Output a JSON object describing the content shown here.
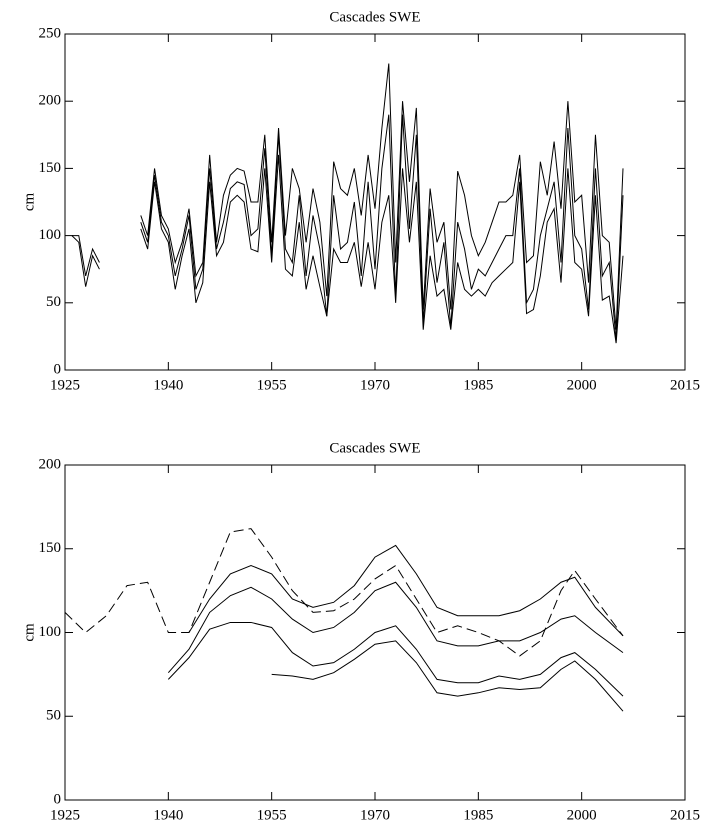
{
  "chart_data": [
    {
      "type": "line",
      "title": "Cascades SWE",
      "ylabel": "cm",
      "x": [
        1926,
        1927,
        1928,
        1929,
        1930,
        1931,
        1932,
        1933,
        1934,
        1935,
        1936,
        1937,
        1938,
        1939,
        1940,
        1941,
        1942,
        1943,
        1944,
        1945,
        1946,
        1947,
        1948,
        1949,
        1950,
        1951,
        1952,
        1953,
        1954,
        1955,
        1956,
        1957,
        1958,
        1959,
        1960,
        1961,
        1962,
        1963,
        1964,
        1965,
        1966,
        1967,
        1968,
        1969,
        1970,
        1971,
        1972,
        1973,
        1974,
        1975,
        1976,
        1977,
        1978,
        1979,
        1980,
        1981,
        1982,
        1983,
        1984,
        1985,
        1986,
        1987,
        1988,
        1989,
        1990,
        1991,
        1992,
        1993,
        1994,
        1995,
        1996,
        1997,
        1998,
        1999,
        2000,
        2001,
        2002,
        2003,
        2004,
        2005,
        2006
      ],
      "series": [
        {
          "color": "#000000",
          "values": [
            100,
            95,
            62,
            85,
            75,
            null,
            null,
            null,
            null,
            null,
            110,
            95,
            145,
            110,
            100,
            70,
            90,
            115,
            60,
            75,
            150,
            90,
            110,
            135,
            140,
            138,
            100,
            105,
            165,
            85,
            175,
            90,
            80,
            130,
            70,
            115,
            90,
            40,
            130,
            90,
            95,
            125,
            70,
            140,
            75,
            150,
            190,
            55,
            190,
            105,
            175,
            35,
            120,
            65,
            95,
            32,
            110,
            90,
            60,
            75,
            70,
            80,
            90,
            100,
            100,
            150,
            50,
            60,
            100,
            120,
            140,
            80,
            180,
            100,
            90,
            45,
            150,
            70,
            80,
            22,
            130
          ]
        },
        {
          "color": "#000000",
          "values": [
            100,
            100,
            70,
            90,
            80,
            null,
            null,
            null,
            null,
            null,
            115,
            100,
            150,
            115,
            105,
            80,
            95,
            120,
            70,
            80,
            160,
            95,
            130,
            145,
            150,
            148,
            125,
            125,
            175,
            95,
            180,
            100,
            150,
            135,
            95,
            135,
            110,
            55,
            155,
            135,
            130,
            150,
            115,
            160,
            120,
            180,
            228,
            80,
            200,
            140,
            195,
            45,
            135,
            95,
            110,
            45,
            148,
            130,
            100,
            85,
            95,
            110,
            125,
            125,
            130,
            160,
            80,
            85,
            155,
            130,
            170,
            120,
            200,
            125,
            130,
            65,
            175,
            100,
            95,
            30,
            150
          ]
        },
        {
          "color": "#000000",
          "values": [
            null,
            null,
            null,
            null,
            null,
            null,
            null,
            null,
            null,
            null,
            105,
            90,
            140,
            105,
            95,
            60,
            85,
            105,
            50,
            65,
            140,
            85,
            95,
            125,
            130,
            125,
            90,
            88,
            150,
            80,
            160,
            75,
            70,
            110,
            60,
            85,
            62,
            40,
            90,
            80,
            80,
            95,
            62,
            95,
            60,
            110,
            130,
            50,
            150,
            95,
            140,
            30,
            85,
            55,
            60,
            30,
            80,
            60,
            55,
            60,
            55,
            65,
            70,
            75,
            80,
            140,
            42,
            45,
            70,
            110,
            120,
            65,
            150,
            80,
            75,
            40,
            130,
            52,
            55,
            20,
            85
          ]
        }
      ],
      "xlim": [
        1925,
        2015
      ],
      "ylim": [
        0,
        250
      ],
      "xticks": [
        1925,
        1940,
        1955,
        1970,
        1985,
        2000,
        2015
      ],
      "yticks": [
        0,
        50,
        100,
        150,
        200,
        250
      ]
    },
    {
      "type": "line",
      "title": "Cascades SWE",
      "ylabel": "cm",
      "x": [
        1925,
        1928,
        1931,
        1934,
        1937,
        1940,
        1943,
        1946,
        1949,
        1952,
        1955,
        1958,
        1961,
        1964,
        1967,
        1970,
        1973,
        1976,
        1979,
        1982,
        1985,
        1988,
        1991,
        1994,
        1997,
        1999,
        2002,
        2006
      ],
      "series": [
        {
          "color": "#000000",
          "line_style": "dashed",
          "values": [
            112,
            100,
            110,
            128,
            130,
            100,
            100,
            130,
            160,
            162,
            145,
            125,
            112,
            113,
            120,
            132,
            140,
            120,
            100,
            104,
            100,
            95,
            86,
            95,
            125,
            137,
            120,
            98
          ]
        },
        {
          "color": "#000000",
          "values": [
            null,
            null,
            null,
            null,
            null,
            null,
            100,
            120,
            135,
            140,
            135,
            120,
            115,
            118,
            128,
            145,
            152,
            135,
            115,
            110,
            110,
            110,
            113,
            120,
            130,
            133,
            115,
            98
          ]
        },
        {
          "color": "#000000",
          "values": [
            null,
            null,
            null,
            null,
            null,
            76,
            90,
            112,
            122,
            127,
            120,
            108,
            100,
            103,
            112,
            125,
            130,
            115,
            95,
            92,
            92,
            95,
            95,
            100,
            108,
            110,
            100,
            88
          ]
        },
        {
          "color": "#000000",
          "values": [
            null,
            null,
            null,
            null,
            null,
            72,
            85,
            102,
            106,
            106,
            103,
            88,
            80,
            82,
            90,
            100,
            104,
            90,
            72,
            70,
            70,
            74,
            72,
            75,
            85,
            88,
            78,
            62
          ]
        },
        {
          "color": "#000000",
          "values": [
            null,
            null,
            null,
            null,
            null,
            null,
            null,
            null,
            null,
            null,
            75,
            74,
            72,
            76,
            84,
            93,
            95,
            82,
            64,
            62,
            64,
            67,
            66,
            67,
            78,
            83,
            72,
            53
          ]
        }
      ],
      "xlim": [
        1925,
        2015
      ],
      "ylim": [
        0,
        200
      ],
      "xticks": [
        1925,
        1940,
        1955,
        1970,
        1985,
        2000,
        2015
      ],
      "yticks": [
        0,
        50,
        100,
        150,
        200
      ]
    }
  ]
}
